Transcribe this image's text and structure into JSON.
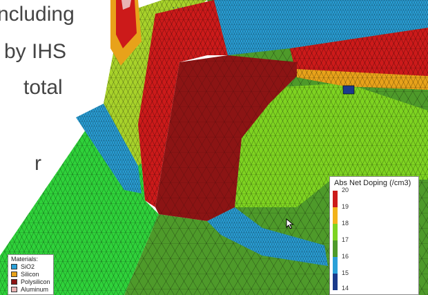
{
  "slide": {
    "lines": [
      "ncluding",
      "by IHS",
      "total",
      "r"
    ],
    "text_color": "#444444"
  },
  "viewer": {
    "file_label": "...",
    "colors": {
      "green": "#2fd23a",
      "light_green": "#7ed321",
      "olive": "#4e9a2a",
      "yellow_green": "#a8d22a",
      "blue": "#2aa0d8",
      "dark_red": "#8c1414",
      "red": "#cc1a1a",
      "orange": "#e8a21a",
      "mesh_line": "#000000"
    }
  },
  "doping_legend": {
    "title": "Abs Net Doping (/cm3)",
    "ticks": [
      "20",
      "19",
      "18",
      "17",
      "16",
      "15",
      "14"
    ],
    "bands": [
      "#cc1a1a",
      "#f2b21a",
      "#7ed321",
      "#4e9a2a",
      "#2aa0d8",
      "#1a3a8c"
    ]
  },
  "materials_legend": {
    "title": "Materials:",
    "items": [
      {
        "label": "SiO2",
        "color": "#2aa0d8"
      },
      {
        "label": "Silicon",
        "color": "#e8a21a"
      },
      {
        "label": "Polysilicon",
        "color": "#8c1414"
      },
      {
        "label": "Aluminum",
        "color": "#e8b4b4"
      }
    ]
  }
}
